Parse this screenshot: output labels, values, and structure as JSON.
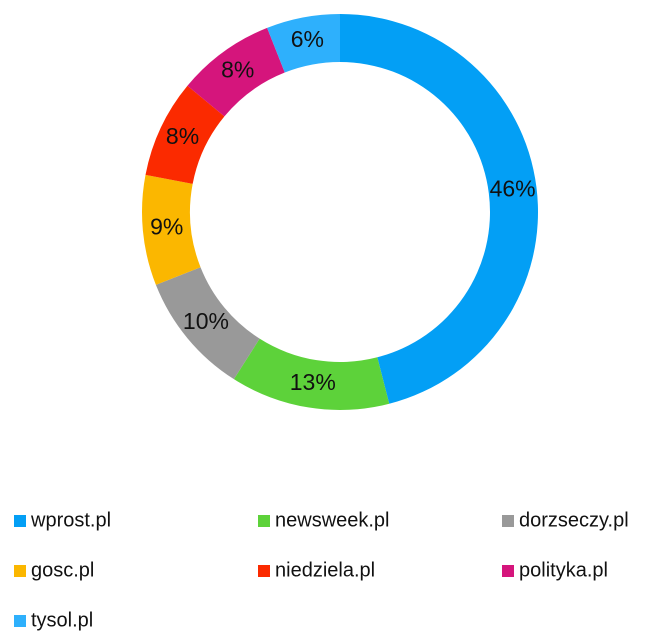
{
  "chart_data": {
    "type": "pie",
    "categories": [
      "wprost.pl",
      "newsweek.pl",
      "dorzseczy.pl",
      "gosc.pl",
      "niedziela.pl",
      "polityka.pl",
      "tysol.pl"
    ],
    "values": [
      46,
      13,
      10,
      9,
      8,
      8,
      6
    ],
    "value_labels": [
      "46%",
      "13%",
      "10%",
      "9%",
      "8%",
      "8%",
      "6%"
    ],
    "colors": [
      "#039ff5",
      "#5dd23a",
      "#999999",
      "#fbb700",
      "#fb2a00",
      "#d5157c",
      "#2eb0fc"
    ],
    "legend": "bottom"
  }
}
